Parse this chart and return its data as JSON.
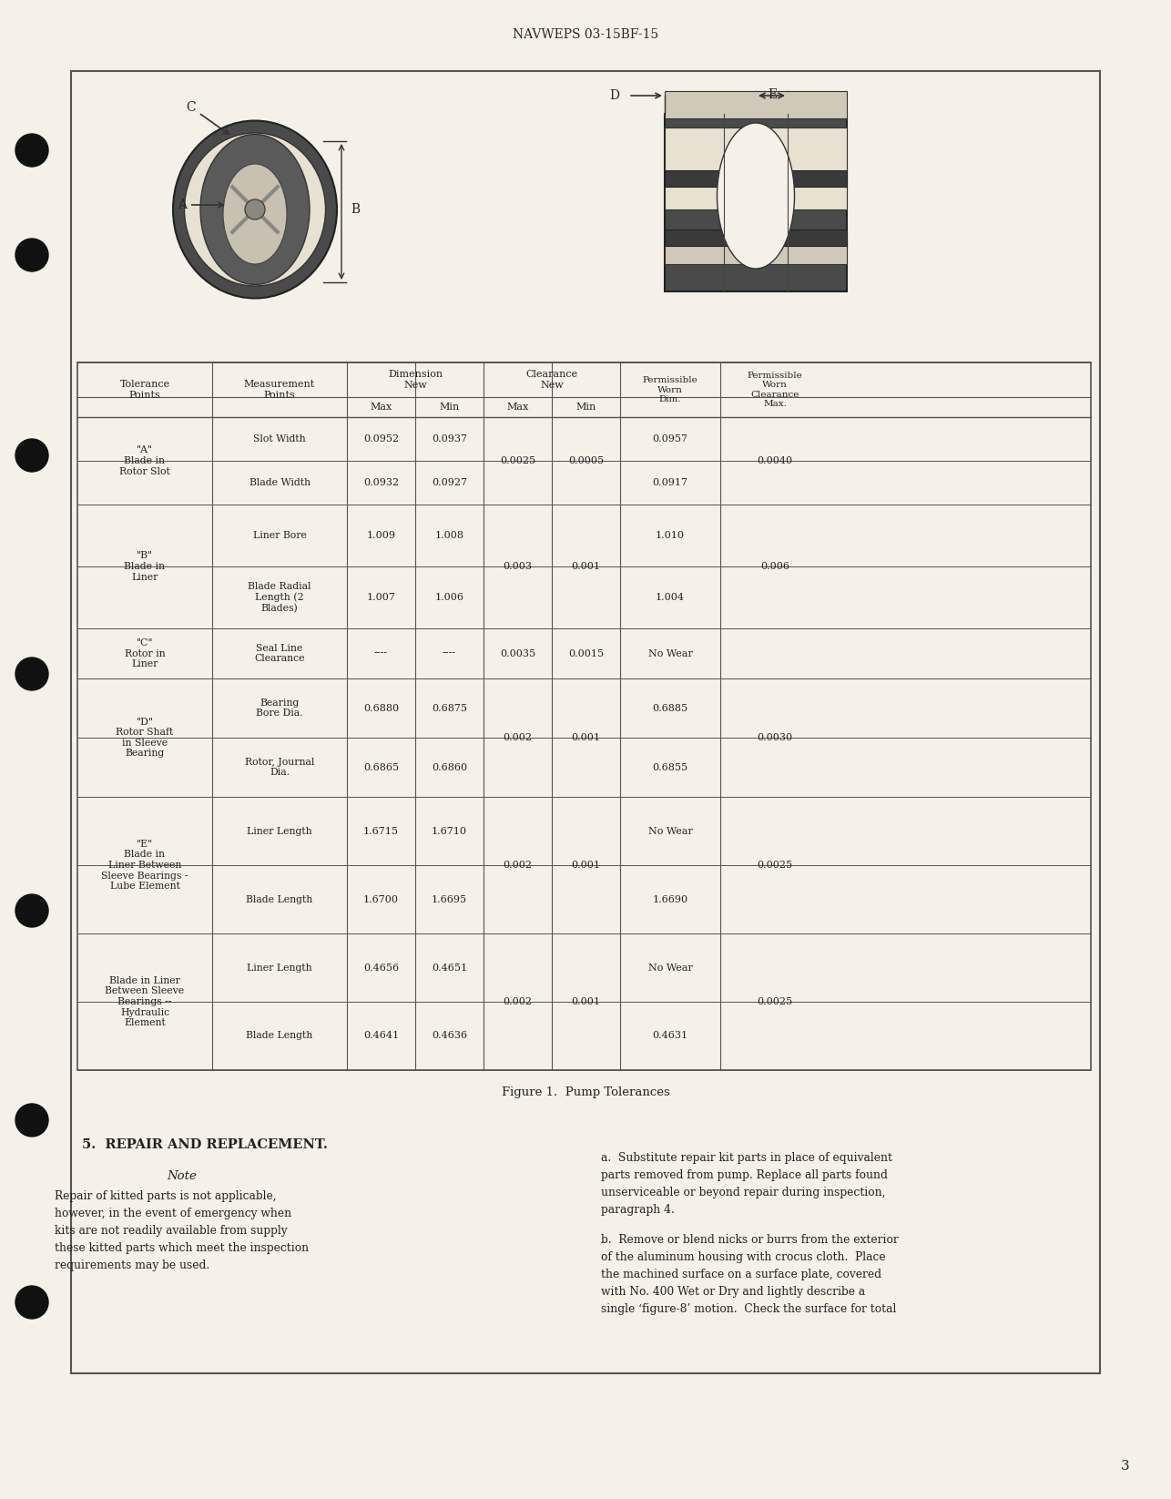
{
  "page_bg": "#f5f0e8",
  "header_text": "NAVWEPS 03-15BF-15",
  "page_number": "3",
  "figure_caption": "Figure 1.  Pump Tolerances",
  "section_header": "5.  REPAIR AND REPLACEMENT.",
  "note_header": "Note",
  "note_text": "Repair of kitted parts is not applicable,\nhowever, in the event of emergency when\nkits are not readily available from supply\nthese kitted parts which meet the inspection\nrequirements may be used.",
  "right_text_a": "a.  Substitute repair kit parts in place of equivalent\nparts removed from pump. Replace all parts found\nunserviceable or beyond repair during inspection,\nparagraph 4.",
  "right_text_b": "b.  Remove or blend nicks or burrs from the exterior\nof the aluminum housing with crocus cloth.  Place\nthe machined surface on a surface plate, covered\nwith No. 400 Wet or Dry and lightly describe a\nsingle ‘figure-8’ motion.  Check the surface for total",
  "table": {
    "col_headers": [
      "Tolerance\nPoints",
      "Measurement\nPoints",
      "Dimension\nNew\nMax",
      "Dimension\nNew\nMin",
      "Clearance\nNew\nMax",
      "Clearance\nNew\nMin",
      "Permissible\nWorn\nDim.",
      "Permissible\nWorn\nClearance\nMax."
    ],
    "rows": [
      {
        "tolerance": "\"A\"\nBlade in\nRotor Slot",
        "measurement": "Slot Width",
        "dim_max": "0.0952",
        "dim_min": "0.0937",
        "clear_max": "0.0025",
        "clear_min": "0.0005",
        "worn_dim": "0.0957",
        "worn_clear": "0.0040"
      },
      {
        "tolerance": "",
        "measurement": "Blade Width",
        "dim_max": "0.0932",
        "dim_min": "0.0927",
        "clear_max": "",
        "clear_min": "",
        "worn_dim": "0.0917",
        "worn_clear": ""
      },
      {
        "tolerance": "\"B\"\nBlade in\nLiner",
        "measurement": "Liner Bore",
        "dim_max": "1.009",
        "dim_min": "1.008",
        "clear_max": "0.003",
        "clear_min": "0.001",
        "worn_dim": "1.010",
        "worn_clear": "0.006"
      },
      {
        "tolerance": "",
        "measurement": "Blade Radial\nLength (2\nBlades)",
        "dim_max": "1.007",
        "dim_min": "1.006",
        "clear_max": "",
        "clear_min": "",
        "worn_dim": "1.004",
        "worn_clear": ""
      },
      {
        "tolerance": "\"C\"\nRotor in\nLiner",
        "measurement": "Seal Line\nClearance",
        "dim_max": "----",
        "dim_min": "----",
        "clear_max": "0.0035",
        "clear_min": "0.0015",
        "worn_dim": "No Wear",
        "worn_clear": ""
      },
      {
        "tolerance": "\"D\"\nRotor Shaft\nin Sleeve\nBearing",
        "measurement": "Bearing\nBore Dia.",
        "dim_max": "0.6880",
        "dim_min": "0.6875",
        "clear_max": "0.002",
        "clear_min": "0.001",
        "worn_dim": "0.6885",
        "worn_clear": "0.0030"
      },
      {
        "tolerance": "",
        "measurement": "Rotor, Journal\nDia.",
        "dim_max": "0.6865",
        "dim_min": "0.6860",
        "clear_max": "",
        "clear_min": "",
        "worn_dim": "0.6855",
        "worn_clear": ""
      },
      {
        "tolerance": "\"E\"\nBlade in\nLiner Between\nSleeve Bearings -\nLube Element",
        "measurement": "Liner Length",
        "dim_max": "1.6715",
        "dim_min": "1.6710",
        "clear_max": "0.002",
        "clear_min": "0.001",
        "worn_dim": "No Wear",
        "worn_clear": "0.0025"
      },
      {
        "tolerance": "",
        "measurement": "Blade Length",
        "dim_max": "1.6700",
        "dim_min": "1.6695",
        "clear_max": "",
        "clear_min": "",
        "worn_dim": "1.6690",
        "worn_clear": ""
      },
      {
        "tolerance": "Blade in Liner\nBetween Sleeve\nBearings --\nHydraulic\nElement",
        "measurement": "Liner Length",
        "dim_max": "0.4656",
        "dim_min": "0.4651",
        "clear_max": "0.002",
        "clear_min": "0.001",
        "worn_dim": "No Wear",
        "worn_clear": "0.0025"
      },
      {
        "tolerance": "",
        "measurement": "Blade Length",
        "dim_max": "0.4641",
        "dim_min": "0.4636",
        "clear_max": "",
        "clear_min": "",
        "worn_dim": "0.4631",
        "worn_clear": ""
      }
    ]
  }
}
